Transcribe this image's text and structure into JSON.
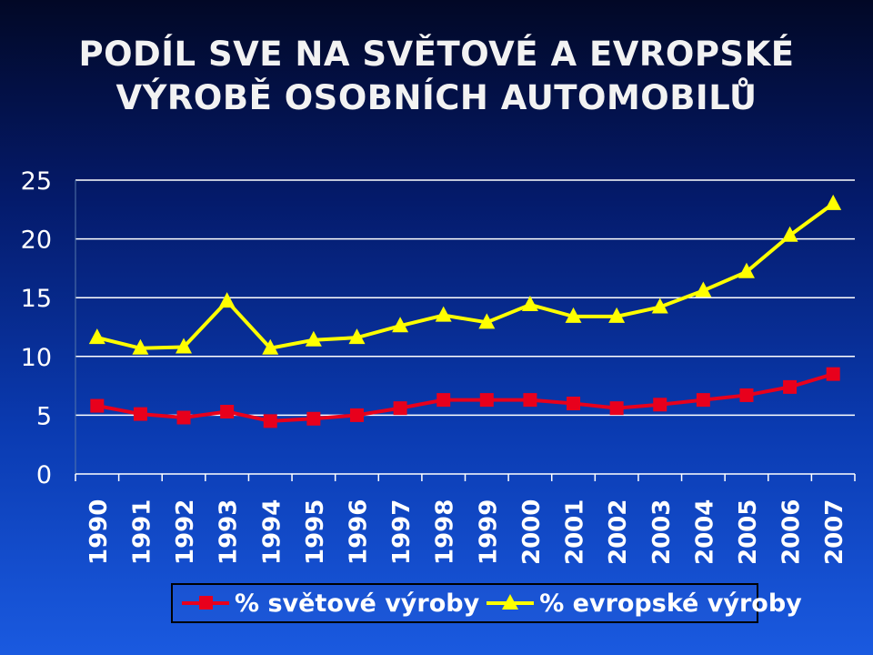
{
  "title": {
    "line1": "PODÍL SVE NA SVĚTOVÉ A EVROPSKÉ",
    "line2": "VÝROBĚ OSOBNÍCH AUTOMOBILŮ"
  },
  "colors": {
    "world": "#e8001c",
    "europe": "#ffff00",
    "grid": "#ffffff",
    "text": "#ffffff"
  },
  "chart_data": {
    "type": "line",
    "title": "PODÍL SVE NA SVĚTOVÉ A EVROPSKÉ VÝROBĚ OSOBNÍCH AUTOMOBILŮ",
    "xlabel": "",
    "ylabel": "",
    "ylim": [
      0,
      25
    ],
    "yticks": [
      0,
      5,
      10,
      15,
      20,
      25
    ],
    "grid": true,
    "legend": "bottom",
    "categories": [
      "1990",
      "1991",
      "1992",
      "1993",
      "1994",
      "1995",
      "1996",
      "1997",
      "1998",
      "1999",
      "2000",
      "2001",
      "2002",
      "2003",
      "2004",
      "2005",
      "2006",
      "2007"
    ],
    "series": [
      {
        "name": "% světové výroby",
        "marker": "square",
        "color": "#e8001c",
        "values": [
          5.8,
          5.1,
          4.8,
          5.3,
          4.5,
          4.7,
          5.0,
          5.6,
          6.3,
          6.3,
          6.3,
          6.0,
          5.6,
          5.9,
          6.3,
          6.7,
          7.4,
          8.5
        ]
      },
      {
        "name": "% evropské výroby",
        "marker": "triangle",
        "color": "#ffff00",
        "values": [
          11.6,
          10.7,
          10.8,
          14.7,
          10.7,
          11.4,
          11.6,
          12.6,
          13.5,
          12.9,
          14.4,
          13.4,
          13.4,
          14.2,
          15.6,
          17.2,
          20.3,
          23.0
        ]
      }
    ]
  }
}
